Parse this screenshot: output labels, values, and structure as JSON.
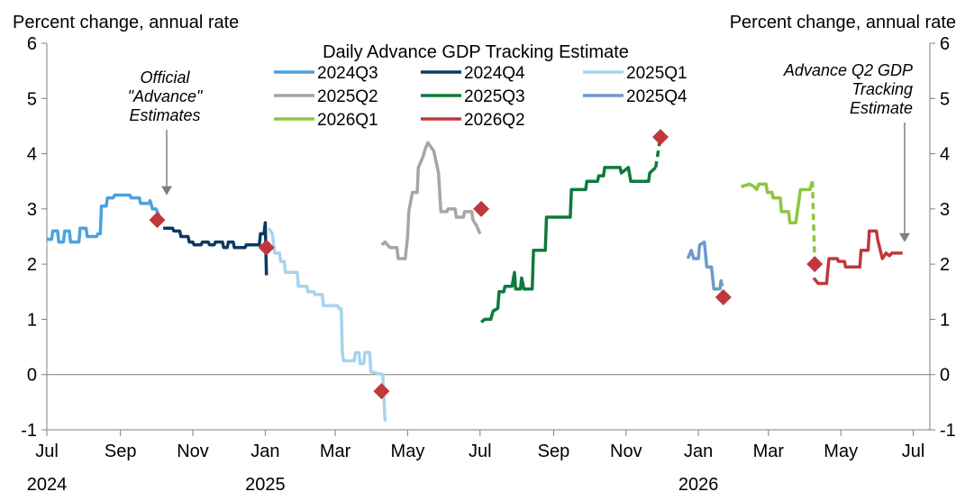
{
  "chart_data": {
    "type": "line",
    "title": "Daily Advance GDP Tracking Estimate",
    "ylabel_left": "Percent change, annual rate",
    "ylabel_right": "Percent change, annual rate",
    "ylim": [
      -1,
      6
    ],
    "yticks": [
      "-1",
      "0",
      "1",
      "2",
      "3",
      "4",
      "5",
      "6"
    ],
    "xlim": [
      "2024-07-01",
      "2026-07-15"
    ],
    "xticks": [
      {
        "date": "2024-07-01",
        "label": "Jul",
        "year": "2024"
      },
      {
        "date": "2024-09-01",
        "label": "Sep",
        "year": ""
      },
      {
        "date": "2024-11-01",
        "label": "Nov",
        "year": ""
      },
      {
        "date": "2025-01-01",
        "label": "Jan",
        "year": "2025"
      },
      {
        "date": "2025-03-01",
        "label": "Mar",
        "year": ""
      },
      {
        "date": "2025-05-01",
        "label": "May",
        "year": ""
      },
      {
        "date": "2025-07-01",
        "label": "Jul",
        "year": ""
      },
      {
        "date": "2025-09-01",
        "label": "Sep",
        "year": ""
      },
      {
        "date": "2025-11-01",
        "label": "Nov",
        "year": ""
      },
      {
        "date": "2026-01-01",
        "label": "Jan",
        "year": "2026"
      },
      {
        "date": "2026-03-01",
        "label": "Mar",
        "year": ""
      },
      {
        "date": "2026-05-01",
        "label": "May",
        "year": ""
      },
      {
        "date": "2026-07-01",
        "label": "Jul",
        "year": ""
      }
    ],
    "zero_line": true,
    "legend_placement": "top-center",
    "series": [
      {
        "name": "2024Q3",
        "color": "#4aa3df",
        "points": [
          [
            "2024-07-01",
            2.45
          ],
          [
            "2024-07-05",
            2.45
          ],
          [
            "2024-07-06",
            2.6
          ],
          [
            "2024-07-10",
            2.6
          ],
          [
            "2024-07-11",
            2.4
          ],
          [
            "2024-07-15",
            2.4
          ],
          [
            "2024-07-16",
            2.6
          ],
          [
            "2024-07-20",
            2.6
          ],
          [
            "2024-07-21",
            2.4
          ],
          [
            "2024-07-28",
            2.4
          ],
          [
            "2024-07-29",
            2.65
          ],
          [
            "2024-08-03",
            2.65
          ],
          [
            "2024-08-04",
            2.5
          ],
          [
            "2024-08-12",
            2.5
          ],
          [
            "2024-08-13",
            2.55
          ],
          [
            "2024-08-15",
            2.55
          ],
          [
            "2024-08-16",
            3.05
          ],
          [
            "2024-08-20",
            3.05
          ],
          [
            "2024-08-21",
            3.2
          ],
          [
            "2024-08-26",
            3.2
          ],
          [
            "2024-08-27",
            3.25
          ],
          [
            "2024-09-09",
            3.25
          ],
          [
            "2024-09-10",
            3.2
          ],
          [
            "2024-09-17",
            3.2
          ],
          [
            "2024-09-18",
            3.1
          ],
          [
            "2024-09-25",
            3.1
          ],
          [
            "2024-09-26",
            3.15
          ],
          [
            "2024-09-28",
            3.0
          ],
          [
            "2024-10-01",
            3.0
          ],
          [
            "2024-10-05",
            2.8
          ]
        ]
      },
      {
        "name": "2024Q4",
        "color": "#0b3a62",
        "points": [
          [
            "2024-10-07",
            2.65
          ],
          [
            "2024-10-15",
            2.65
          ],
          [
            "2024-10-16",
            2.6
          ],
          [
            "2024-10-21",
            2.6
          ],
          [
            "2024-10-22",
            2.5
          ],
          [
            "2024-10-28",
            2.5
          ],
          [
            "2024-10-29",
            2.4
          ],
          [
            "2024-11-01",
            2.4
          ],
          [
            "2024-11-02",
            2.35
          ],
          [
            "2024-11-08",
            2.35
          ],
          [
            "2024-11-09",
            2.4
          ],
          [
            "2024-11-14",
            2.4
          ],
          [
            "2024-11-15",
            2.35
          ],
          [
            "2024-11-19",
            2.35
          ],
          [
            "2024-11-20",
            2.4
          ],
          [
            "2024-11-26",
            2.4
          ],
          [
            "2024-11-27",
            2.3
          ],
          [
            "2024-11-30",
            2.3
          ],
          [
            "2024-12-01",
            2.4
          ],
          [
            "2024-12-05",
            2.4
          ],
          [
            "2024-12-06",
            2.3
          ],
          [
            "2024-12-15",
            2.3
          ],
          [
            "2024-12-16",
            2.35
          ],
          [
            "2024-12-27",
            2.35
          ],
          [
            "2024-12-28",
            2.55
          ],
          [
            "2024-12-31",
            2.55
          ],
          [
            "2025-01-01",
            2.75
          ],
          [
            "2025-01-02",
            1.8
          ]
        ]
      },
      {
        "name": "2025Q1",
        "color": "#a8d3ee",
        "points": [
          [
            "2025-01-04",
            2.65
          ],
          [
            "2025-01-07",
            2.55
          ],
          [
            "2025-01-09",
            2.2
          ],
          [
            "2025-01-13",
            2.2
          ],
          [
            "2025-01-14",
            2.05
          ],
          [
            "2025-01-17",
            2.05
          ],
          [
            "2025-01-18",
            1.85
          ],
          [
            "2025-01-28",
            1.85
          ],
          [
            "2025-01-29",
            1.6
          ],
          [
            "2025-02-05",
            1.6
          ],
          [
            "2025-02-06",
            1.5
          ],
          [
            "2025-02-11",
            1.5
          ],
          [
            "2025-02-12",
            1.45
          ],
          [
            "2025-02-18",
            1.45
          ],
          [
            "2025-02-19",
            1.25
          ],
          [
            "2025-03-03",
            1.25
          ],
          [
            "2025-03-04",
            1.2
          ],
          [
            "2025-03-06",
            1.2
          ],
          [
            "2025-03-07",
            0.4
          ],
          [
            "2025-03-08",
            0.25
          ],
          [
            "2025-03-17",
            0.25
          ],
          [
            "2025-03-18",
            0.4
          ],
          [
            "2025-03-21",
            0.4
          ],
          [
            "2025-03-22",
            0.2
          ],
          [
            "2025-03-25",
            0.2
          ],
          [
            "2025-03-26",
            0.4
          ],
          [
            "2025-03-30",
            0.4
          ],
          [
            "2025-03-31",
            0.05
          ],
          [
            "2025-04-10",
            0.0
          ],
          [
            "2025-04-12",
            -0.85
          ]
        ]
      },
      {
        "name": "2025Q2",
        "color": "#a6a6a6",
        "points": [
          [
            "2025-04-09",
            2.35
          ],
          [
            "2025-04-12",
            2.4
          ],
          [
            "2025-04-16",
            2.3
          ],
          [
            "2025-04-22",
            2.3
          ],
          [
            "2025-04-23",
            2.1
          ],
          [
            "2025-04-29",
            2.1
          ],
          [
            "2025-04-30",
            2.3
          ],
          [
            "2025-05-01",
            2.5
          ],
          [
            "2025-05-02",
            2.95
          ],
          [
            "2025-05-05",
            3.3
          ],
          [
            "2025-05-09",
            3.3
          ],
          [
            "2025-05-10",
            3.75
          ],
          [
            "2025-05-14",
            3.95
          ],
          [
            "2025-05-16",
            4.1
          ],
          [
            "2025-05-18",
            4.2
          ],
          [
            "2025-05-23",
            4.05
          ],
          [
            "2025-05-27",
            3.65
          ],
          [
            "2025-05-29",
            2.95
          ],
          [
            "2025-06-03",
            2.95
          ],
          [
            "2025-06-04",
            3.0
          ],
          [
            "2025-06-10",
            3.0
          ],
          [
            "2025-06-11",
            2.85
          ],
          [
            "2025-06-17",
            2.85
          ],
          [
            "2025-06-18",
            2.95
          ],
          [
            "2025-06-24",
            2.95
          ],
          [
            "2025-06-25",
            2.8
          ],
          [
            "2025-06-28",
            2.7
          ],
          [
            "2025-07-01",
            2.55
          ]
        ]
      },
      {
        "name": "2025Q3",
        "color": "#0e7a3c",
        "points": [
          [
            "2025-07-02",
            0.95
          ],
          [
            "2025-07-05",
            1.0
          ],
          [
            "2025-07-10",
            1.0
          ],
          [
            "2025-07-12",
            1.15
          ],
          [
            "2025-07-16",
            1.2
          ],
          [
            "2025-07-17",
            1.5
          ],
          [
            "2025-07-21",
            1.5
          ],
          [
            "2025-07-22",
            1.6
          ],
          [
            "2025-07-28",
            1.6
          ],
          [
            "2025-07-30",
            1.85
          ],
          [
            "2025-07-31",
            1.55
          ],
          [
            "2025-08-04",
            1.55
          ],
          [
            "2025-08-05",
            1.75
          ],
          [
            "2025-08-07",
            1.55
          ],
          [
            "2025-08-14",
            1.55
          ],
          [
            "2025-08-15",
            2.25
          ],
          [
            "2025-08-25",
            2.25
          ],
          [
            "2025-08-26",
            2.85
          ],
          [
            "2025-09-15",
            2.85
          ],
          [
            "2025-09-16",
            3.35
          ],
          [
            "2025-09-28",
            3.35
          ],
          [
            "2025-09-29",
            3.5
          ],
          [
            "2025-10-08",
            3.5
          ],
          [
            "2025-10-09",
            3.6
          ],
          [
            "2025-10-13",
            3.6
          ],
          [
            "2025-10-14",
            3.75
          ],
          [
            "2025-10-27",
            3.75
          ],
          [
            "2025-10-28",
            3.65
          ],
          [
            "2025-11-03",
            3.75
          ],
          [
            "2025-11-05",
            3.5
          ],
          [
            "2025-11-20",
            3.5
          ],
          [
            "2025-11-21",
            3.65
          ],
          [
            "2025-11-26",
            3.75
          ]
        ]
      },
      {
        "name": "2025Q4",
        "color": "#6d9ac9",
        "points": [
          [
            "2025-12-23",
            2.1
          ],
          [
            "2025-12-26",
            2.25
          ],
          [
            "2025-12-28",
            2.1
          ],
          [
            "2026-01-01",
            2.1
          ],
          [
            "2026-01-02",
            2.35
          ],
          [
            "2026-01-06",
            2.4
          ],
          [
            "2026-01-08",
            1.95
          ],
          [
            "2026-01-12",
            1.95
          ],
          [
            "2026-01-14",
            1.55
          ],
          [
            "2026-01-19",
            1.55
          ],
          [
            "2026-01-20",
            1.7
          ],
          [
            "2026-01-21",
            1.6
          ]
        ]
      },
      {
        "name": "2026Q1",
        "color": "#8cc63f",
        "points": [
          [
            "2026-02-06",
            3.4
          ],
          [
            "2026-02-13",
            3.45
          ],
          [
            "2026-02-17",
            3.4
          ],
          [
            "2026-02-19",
            3.35
          ],
          [
            "2026-02-21",
            3.45
          ],
          [
            "2026-02-27",
            3.45
          ],
          [
            "2026-02-28",
            3.3
          ],
          [
            "2026-03-04",
            3.3
          ],
          [
            "2026-03-05",
            3.2
          ],
          [
            "2026-03-11",
            3.2
          ],
          [
            "2026-03-12",
            2.95
          ],
          [
            "2026-03-18",
            2.95
          ],
          [
            "2026-03-19",
            2.75
          ],
          [
            "2026-03-24",
            2.75
          ],
          [
            "2026-03-25",
            2.9
          ],
          [
            "2026-03-28",
            3.35
          ],
          [
            "2026-04-05",
            3.35
          ],
          [
            "2026-04-07",
            3.5
          ]
        ]
      },
      {
        "name": "2026Q2",
        "color": "#c0383b",
        "points": [
          [
            "2026-04-08",
            1.75
          ],
          [
            "2026-04-12",
            1.65
          ],
          [
            "2026-04-19",
            1.65
          ],
          [
            "2026-04-21",
            2.1
          ],
          [
            "2026-04-28",
            2.1
          ],
          [
            "2026-04-29",
            2.05
          ],
          [
            "2026-05-04",
            2.05
          ],
          [
            "2026-05-05",
            1.95
          ],
          [
            "2026-05-17",
            1.95
          ],
          [
            "2026-05-18",
            2.25
          ],
          [
            "2026-05-24",
            2.25
          ],
          [
            "2026-05-25",
            2.6
          ],
          [
            "2026-05-31",
            2.6
          ],
          [
            "2026-06-01",
            2.45
          ],
          [
            "2026-06-05",
            2.1
          ],
          [
            "2026-06-08",
            2.2
          ],
          [
            "2026-06-11",
            2.15
          ],
          [
            "2026-06-13",
            2.2
          ],
          [
            "2026-06-22",
            2.2
          ]
        ]
      }
    ],
    "dashed_segments": [
      {
        "series": "2025Q3",
        "points": [
          [
            "2025-11-26",
            3.75
          ],
          [
            "2025-11-30",
            4.3
          ]
        ]
      },
      {
        "series": "2026Q1",
        "points": [
          [
            "2026-04-07",
            3.5
          ],
          [
            "2026-04-09",
            2.05
          ]
        ]
      }
    ],
    "advance_estimates": [
      {
        "date": "2024-10-02",
        "value": 2.8
      },
      {
        "date": "2025-01-02",
        "value": 2.3
      },
      {
        "date": "2025-04-09",
        "value": -0.3
      },
      {
        "date": "2025-07-02",
        "value": 3.0
      },
      {
        "date": "2025-11-30",
        "value": 4.3
      },
      {
        "date": "2026-01-22",
        "value": 1.4
      },
      {
        "date": "2026-04-09",
        "value": 2.0
      }
    ],
    "marker_color": "#c0383b",
    "annotations": [
      {
        "lines": [
          "Official",
          "\"Advance\"",
          "Estimates"
        ],
        "arrow_to": [
          "2024-10-04",
          3.2
        ]
      },
      {
        "lines": [
          "Advance Q2 GDP",
          "Tracking",
          "Estimate"
        ],
        "arrow_to": [
          "2026-06-21",
          2.35
        ]
      }
    ]
  }
}
